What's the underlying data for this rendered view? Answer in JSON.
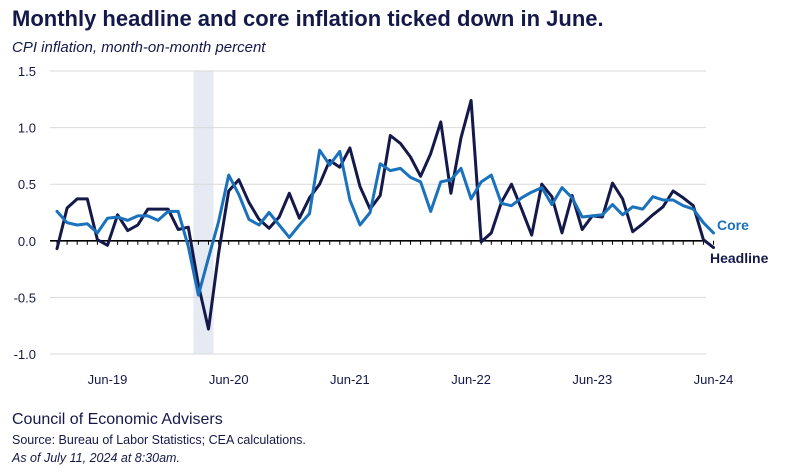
{
  "chart_data": {
    "type": "line",
    "title": "Monthly headline and core inflation ticked down in June.",
    "subtitle": "CPI inflation, month-on-month percent",
    "ylim": [
      -1.0,
      1.5
    ],
    "yticks": [
      "1.5",
      "1.0",
      "0.5",
      "0.0",
      "-0.5",
      "-1.0"
    ],
    "ytick_values": [
      1.5,
      1.0,
      0.5,
      0.0,
      -0.5,
      -1.0
    ],
    "x_start": "Jan-19",
    "x_end": "Jun-24",
    "xticks": [
      {
        "label": "Jun-19",
        "index": 5
      },
      {
        "label": "Jun-20",
        "index": 17
      },
      {
        "label": "Jun-21",
        "index": 29
      },
      {
        "label": "Jun-22",
        "index": 41
      },
      {
        "label": "Jun-23",
        "index": 53
      },
      {
        "label": "Jun-24",
        "index": 65
      }
    ],
    "recession_shading": {
      "start_index": 13.5,
      "end_index": 15.5
    },
    "series": [
      {
        "name": "Headline",
        "color": "#14194a",
        "values": [
          -0.07,
          0.29,
          0.37,
          0.37,
          0.01,
          -0.04,
          0.23,
          0.09,
          0.14,
          0.28,
          0.28,
          0.28,
          0.1,
          0.12,
          -0.39,
          -0.78,
          -0.11,
          0.44,
          0.54,
          0.34,
          0.19,
          0.11,
          0.21,
          0.42,
          0.2,
          0.38,
          0.5,
          0.71,
          0.65,
          0.82,
          0.48,
          0.28,
          0.4,
          0.93,
          0.86,
          0.74,
          0.57,
          0.77,
          1.05,
          0.42,
          0.91,
          1.24,
          -0.01,
          0.07,
          0.34,
          0.5,
          0.28,
          0.05,
          0.5,
          0.39,
          0.07,
          0.4,
          0.1,
          0.22,
          0.21,
          0.51,
          0.37,
          0.08,
          0.15,
          0.23,
          0.3,
          0.44,
          0.38,
          0.31,
          0.01,
          -0.06
        ]
      },
      {
        "name": "Core",
        "color": "#1a72bd",
        "values": [
          0.26,
          0.16,
          0.14,
          0.15,
          0.07,
          0.2,
          0.21,
          0.18,
          0.22,
          0.22,
          0.18,
          0.26,
          0.26,
          -0.05,
          -0.48,
          -0.15,
          0.17,
          0.58,
          0.41,
          0.19,
          0.14,
          0.25,
          0.14,
          0.03,
          0.14,
          0.24,
          0.8,
          0.67,
          0.79,
          0.36,
          0.14,
          0.25,
          0.68,
          0.62,
          0.64,
          0.56,
          0.52,
          0.26,
          0.52,
          0.54,
          0.64,
          0.37,
          0.52,
          0.58,
          0.33,
          0.31,
          0.38,
          0.43,
          0.47,
          0.32,
          0.47,
          0.38,
          0.21,
          0.22,
          0.23,
          0.32,
          0.23,
          0.3,
          0.28,
          0.39,
          0.36,
          0.36,
          0.31,
          0.28,
          0.16,
          0.07
        ]
      }
    ]
  },
  "labels": {
    "core_legend": "Core",
    "headline_legend": "Headline"
  },
  "footer": {
    "org": "Council of Economic Advisers",
    "source": "Source: Bureau of Labor Statistics; CEA calculations.",
    "asof": "As of July 11, 2024 at 8:30am."
  },
  "colors": {
    "headline": "#14194a",
    "core": "#1a72bd",
    "shading": "#e6eaf3",
    "grid": "#d9d9d9"
  }
}
